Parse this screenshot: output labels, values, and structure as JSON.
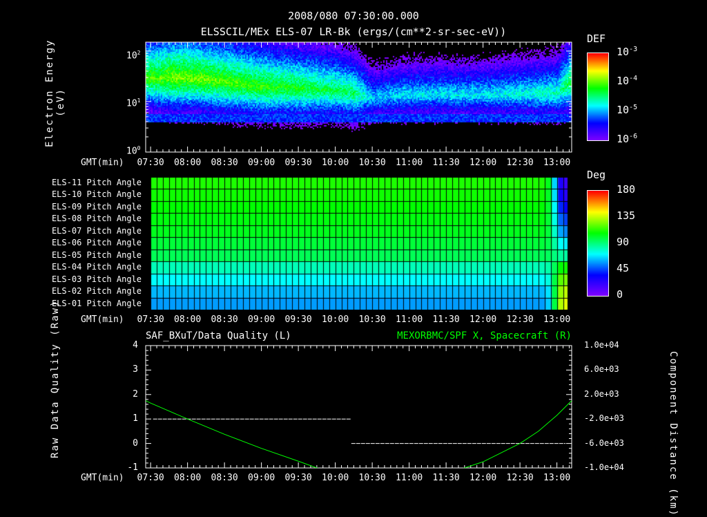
{
  "header": {
    "datetime": "2008/080 07:30:00.000",
    "panel1_title": "ELSSCIL/MEx ELS-07 LR-Bk  (ergs/(cm**2-sr-sec-eV))"
  },
  "time_axis": {
    "label": "GMT(min)",
    "ticks": [
      "07:30",
      "08:00",
      "08:30",
      "09:00",
      "09:30",
      "10:00",
      "10:30",
      "11:00",
      "11:30",
      "12:00",
      "12:30",
      "13:00"
    ],
    "tick_minutes": [
      450,
      480,
      510,
      540,
      570,
      600,
      630,
      660,
      690,
      720,
      750,
      780
    ],
    "range_minutes": [
      446,
      792
    ]
  },
  "chart_data": [
    {
      "type": "heatmap",
      "title": "ELSSCIL/MEx ELS-07 LR-Bk  (ergs/(cm**2-sr-sec-eV))",
      "ylabel": "Electron Energy (eV)",
      "yscale": "log",
      "ylim": [
        1,
        150
      ],
      "ytick_labels": [
        "10^0",
        "10^1",
        "10^2"
      ],
      "colorbar": {
        "label": "DEF",
        "ticks": [
          "10^-3",
          "10^-4",
          "10^-5",
          "10^-6"
        ],
        "range_log10": [
          -6,
          -3
        ]
      },
      "peak_energy_profile_eV": [
        [
          446,
          30
        ],
        [
          480,
          30
        ],
        [
          540,
          20
        ],
        [
          600,
          17
        ],
        [
          630,
          12
        ],
        [
          660,
          14
        ],
        [
          720,
          14
        ],
        [
          780,
          15
        ],
        [
          792,
          25
        ]
      ],
      "peak_log10_def": [
        [
          446,
          -4.1
        ],
        [
          470,
          -3.9
        ],
        [
          540,
          -4.1
        ],
        [
          615,
          -4.4
        ],
        [
          630,
          -4.9
        ],
        [
          660,
          -4.8
        ],
        [
          720,
          -4.8
        ],
        [
          780,
          -4.6
        ],
        [
          792,
          -4.2
        ]
      ]
    },
    {
      "type": "heatmap",
      "ylabel_rows": [
        "ELS-11 Pitch Angle",
        "ELS-10 Pitch Angle",
        "ELS-09 Pitch Angle",
        "ELS-08 Pitch Angle",
        "ELS-07 Pitch Angle",
        "ELS-06 Pitch Angle",
        "ELS-05 Pitch Angle",
        "ELS-04 Pitch Angle",
        "ELS-03 Pitch Angle",
        "ELS-02 Pitch Angle",
        "ELS-01 Pitch Angle"
      ],
      "colorbar": {
        "label": "Deg",
        "ticks": [
          "180",
          "135",
          "90",
          "45",
          "0"
        ],
        "range": [
          0,
          180
        ]
      },
      "pitch_angle_deg": [
        112,
        110,
        108,
        106,
        104,
        100,
        96,
        82,
        72,
        62,
        58
      ],
      "pitch_angle_deg_after_1250": [
        20,
        25,
        35,
        45,
        55,
        70,
        85,
        110,
        125,
        135,
        140
      ]
    },
    {
      "type": "line",
      "title_left": "SAF_BXuT/Data Quality (L)",
      "title_right": "MEXORBMC/SPF X, Spacecraft (R)",
      "ylabel_left": "Raw Data Quality (Raw)",
      "ylabel_right": "Component Distance (km)",
      "ylim_left": [
        -1,
        4
      ],
      "yticks_left": [
        "4",
        "3",
        "2",
        "1",
        "0",
        "-1"
      ],
      "ylim_right": [
        -10000,
        10000
      ],
      "yticks_right": [
        "1.0e+04",
        "6.0e+03",
        "2.0e+03",
        "-2.0e+03",
        "-6.0e+03",
        "-1.0e+04"
      ],
      "series": [
        {
          "name": "Data Quality",
          "color": "#ffffff",
          "points": [
            [
              452,
              1
            ],
            [
              613,
              1
            ],
            [
              613,
              0
            ],
            [
              787,
              0
            ]
          ]
        },
        {
          "name": "SPF X",
          "color": "#00ff00",
          "points": [
            [
              446,
              1000
            ],
            [
              450,
              600
            ],
            [
              465,
              -700
            ],
            [
              480,
              -2000
            ],
            [
              510,
              -4500
            ],
            [
              540,
              -6800
            ],
            [
              570,
              -8900
            ],
            [
              585,
              -10000
            ],
            [
              600,
              -10700
            ],
            [
              630,
              -11300
            ],
            [
              660,
              -11300
            ],
            [
              690,
              -10600
            ],
            [
              705,
              -10000
            ],
            [
              720,
              -9000
            ],
            [
              750,
              -6000
            ],
            [
              765,
              -4000
            ],
            [
              780,
              -1400
            ],
            [
              792,
              1000
            ]
          ]
        }
      ]
    }
  ]
}
